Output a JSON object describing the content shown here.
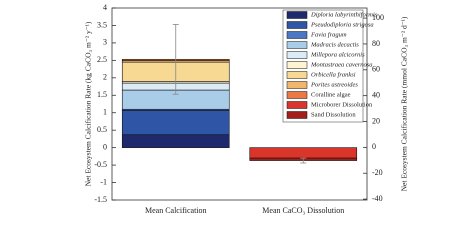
{
  "chart_data": {
    "type": "stacked-bar",
    "ylabel": "Net Ecosystem Calcification Rate (kg CaCO₃ m⁻² y⁻¹)",
    "y2label": "Net Ecosystem Calcification Rate (mmol CaCO₃ m⁻² d⁻¹)",
    "categories": [
      "Mean Calcification",
      "Mean CaCO₃ Dissolution"
    ],
    "series": [
      {
        "name": "Diploria labyrinthiformis",
        "color": "#1f2a6e",
        "italic": true,
        "values": [
          0.37,
          0
        ]
      },
      {
        "name": "Pseudodiploria strigosa",
        "color": "#2f56a6",
        "italic": true,
        "values": [
          0.7,
          0
        ]
      },
      {
        "name": "Favia fragum",
        "color": "#4a78c4",
        "italic": true,
        "values": [
          0.03,
          0
        ]
      },
      {
        "name": "Madracis decactis",
        "color": "#a9cde9",
        "italic": true,
        "values": [
          0.55,
          0
        ]
      },
      {
        "name": "Millepora alcicornis",
        "color": "#dcebf6",
        "italic": true,
        "values": [
          0.2,
          0
        ]
      },
      {
        "name": "Montastraea cavernosa",
        "color": "#fdf4d4",
        "italic": true,
        "values": [
          0.05,
          0
        ]
      },
      {
        "name": "Orbicella franksi",
        "color": "#f8d993",
        "italic": true,
        "values": [
          0.55,
          0
        ]
      },
      {
        "name": "Porites astreoides",
        "color": "#f3b46b",
        "italic": true,
        "values": [
          0.05,
          0
        ]
      },
      {
        "name": "Coralline algae",
        "color": "#ec7944",
        "italic": false,
        "values": [
          0.03,
          0
        ]
      },
      {
        "name": "Microborer Dissolution",
        "color": "#d9352b",
        "italic": false,
        "values": [
          0,
          -0.3
        ]
      },
      {
        "name": "Sand Dissolution",
        "color": "#a31f1c",
        "italic": false,
        "values": [
          0,
          -0.07
        ]
      }
    ],
    "errors": [
      1.0,
      0.07
    ],
    "ylim": [
      -1.5,
      4
    ],
    "yticks": [
      -1.5,
      -1,
      -0.5,
      0,
      0.5,
      1,
      1.5,
      2,
      2.5,
      3,
      3.5,
      4
    ],
    "y2lim": [
      -40.7,
      107.8
    ],
    "y2ticks": [
      -40,
      -20,
      0,
      20,
      40,
      60,
      80,
      100
    ]
  }
}
